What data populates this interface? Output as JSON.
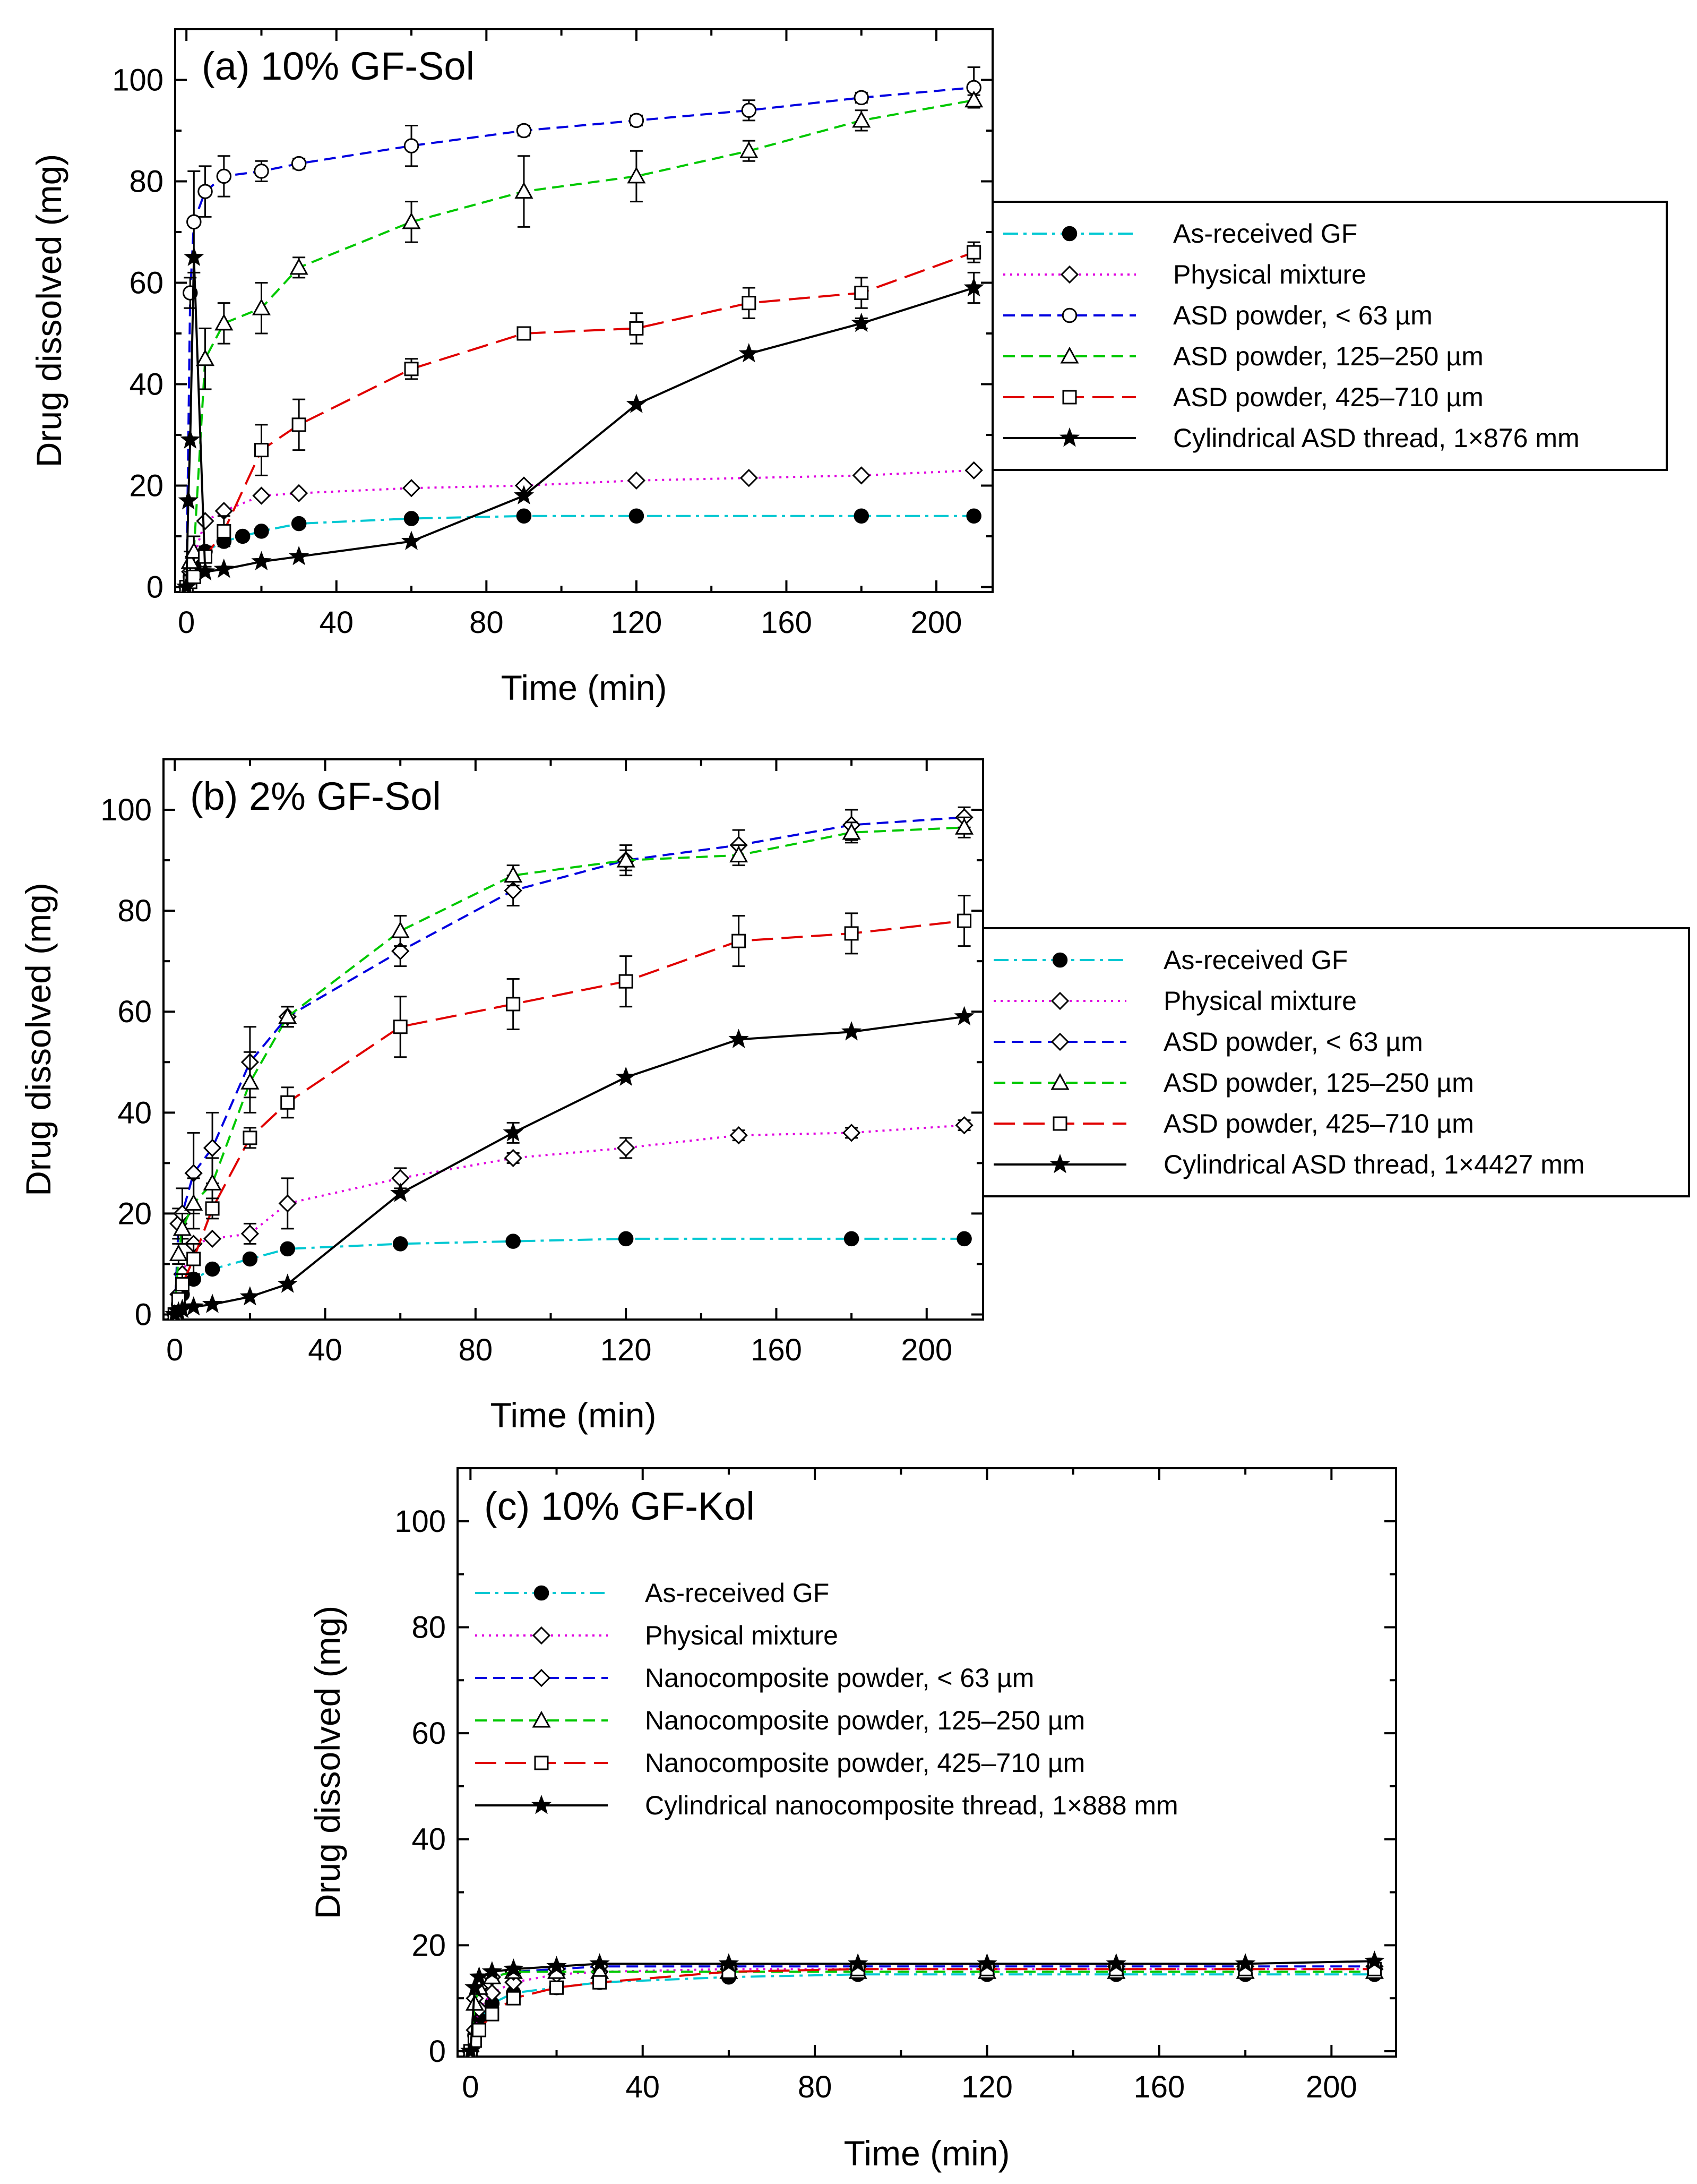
{
  "chart_data": [
    {
      "type": "line",
      "title": "(a) 10% GF-Sol",
      "xlabel": "Time (min)",
      "ylabel": "Drug dissolved (mg)",
      "xlim": [
        -3,
        215
      ],
      "ylim": [
        -1,
        110
      ],
      "xticks": [
        "0",
        "40",
        "80",
        "120",
        "160",
        "200"
      ],
      "yticks": [
        "0",
        "20",
        "40",
        "60",
        "80",
        "100"
      ],
      "legend_position": "right, outside",
      "series": [
        {
          "name": "As-received GF",
          "color": "#00c8d2",
          "dash": "dashdot",
          "marker": "filled-circle",
          "x": [
            0,
            1,
            2,
            5,
            10,
            15,
            20,
            30,
            60,
            90,
            120,
            180,
            210
          ],
          "y": [
            0,
            2,
            4,
            7,
            9,
            10,
            11,
            12.5,
            13.5,
            14,
            14,
            14,
            14
          ]
        },
        {
          "name": "Physical mixture",
          "color": "#e000e0",
          "dash": "dotted",
          "marker": "diamond",
          "x": [
            0,
            1,
            2,
            5,
            10,
            20,
            30,
            60,
            90,
            120,
            150,
            180,
            210
          ],
          "y": [
            0,
            3,
            6,
            13,
            15,
            18,
            18.5,
            19.5,
            20,
            21,
            21.5,
            22,
            23
          ]
        },
        {
          "name": "ASD powder, < 63 µm",
          "color": "#0000e0",
          "dash": "dashed",
          "marker": "circle",
          "x": [
            0,
            1,
            2,
            5,
            10,
            20,
            30,
            60,
            90,
            120,
            150,
            180,
            210
          ],
          "y": [
            0,
            58,
            72,
            78,
            81,
            82,
            83.5,
            87,
            90,
            92,
            94,
            96.5,
            98.5
          ],
          "err": [
            0,
            3,
            10,
            5,
            4,
            2,
            1,
            4,
            1,
            1,
            2,
            1,
            4
          ]
        },
        {
          "name": "ASD powder, 125–250 µm",
          "color": "#00c800",
          "dash": "dashed",
          "marker": "triangle",
          "x": [
            0,
            1,
            2,
            5,
            10,
            20,
            30,
            60,
            90,
            120,
            150,
            180,
            210
          ],
          "y": [
            0,
            5,
            7,
            45,
            52,
            55,
            63,
            72,
            78,
            81,
            86,
            92,
            96
          ],
          "err": [
            0,
            2,
            3,
            6,
            4,
            5,
            2,
            4,
            7,
            5,
            2,
            2,
            1
          ]
        },
        {
          "name": "ASD powder, 425–710 µm",
          "color": "#e00000",
          "dash": "longdash",
          "marker": "square",
          "x": [
            0,
            1,
            2,
            5,
            10,
            20,
            30,
            60,
            90,
            120,
            150,
            180,
            210
          ],
          "y": [
            0,
            1,
            2,
            6,
            11,
            27,
            32,
            43,
            50,
            51,
            56,
            58,
            66
          ],
          "err": [
            0,
            1,
            1,
            2,
            3,
            5,
            5,
            2,
            1,
            3,
            3,
            3,
            2
          ]
        },
        {
          "name": "Cylindrical ASD thread, 1×876 mm",
          "color": "#000000",
          "dash": "solid",
          "marker": "star",
          "x": [
            0,
            0.5,
            1,
            2,
            5,
            10,
            20,
            30,
            60,
            90,
            120,
            150,
            180,
            210
          ],
          "y": [
            0,
            17,
            29,
            65,
            3,
            3.5,
            5,
            6,
            9,
            18,
            36,
            46,
            52,
            59
          ],
          "err": [
            0,
            0,
            0,
            0,
            0,
            0,
            0,
            0,
            0,
            0,
            0,
            0,
            1,
            3
          ]
        }
      ]
    },
    {
      "type": "line",
      "title": "(b) 2% GF-Sol",
      "xlabel": "Time (min)",
      "ylabel": "Drug dissolved (mg)",
      "xlim": [
        -3,
        215
      ],
      "ylim": [
        -1,
        110
      ],
      "xticks": [
        "0",
        "40",
        "80",
        "120",
        "160",
        "200"
      ],
      "yticks": [
        "0",
        "20",
        "40",
        "60",
        "80",
        "100"
      ],
      "legend_position": "right, outside",
      "series": [
        {
          "name": "As-received GF",
          "color": "#00c8d2",
          "dash": "dashdot",
          "marker": "filled-circle",
          "x": [
            0,
            1,
            2,
            5,
            10,
            20,
            30,
            60,
            90,
            120,
            180,
            210
          ],
          "y": [
            0,
            2,
            4,
            7,
            9,
            11,
            13,
            14,
            14.5,
            15,
            15,
            15
          ]
        },
        {
          "name": "Physical mixture",
          "color": "#e000e0",
          "dash": "dotted",
          "marker": "diamond",
          "x": [
            0,
            1,
            2,
            5,
            10,
            20,
            30,
            60,
            90,
            120,
            150,
            180,
            210
          ],
          "y": [
            0,
            4,
            8,
            14,
            15,
            16,
            22,
            27,
            31,
            33,
            35.5,
            36,
            37.5
          ],
          "err": [
            0,
            0,
            0,
            0,
            0,
            2,
            5,
            2,
            1,
            2,
            1,
            1,
            1
          ]
        },
        {
          "name": "ASD powder, < 63 µm",
          "color": "#0000e0",
          "dash": "dashed",
          "marker": "diamond",
          "x": [
            0,
            1,
            2,
            5,
            10,
            20,
            30,
            60,
            90,
            120,
            150,
            180,
            210
          ],
          "y": [
            0,
            18,
            20,
            28,
            33,
            50,
            59,
            72,
            84,
            90,
            93,
            97,
            98.5
          ],
          "err": [
            0,
            3,
            5,
            8,
            7,
            7,
            2,
            3,
            3,
            3,
            3,
            3,
            2
          ]
        },
        {
          "name": "ASD powder, 125–250 µm",
          "color": "#00c800",
          "dash": "dashed",
          "marker": "triangle",
          "x": [
            0,
            1,
            2,
            5,
            10,
            20,
            30,
            60,
            90,
            120,
            150,
            180,
            210
          ],
          "y": [
            0,
            12,
            17,
            22,
            26,
            46,
            59,
            76,
            87,
            90,
            91,
            95.5,
            96.5
          ],
          "err": [
            0,
            2,
            3,
            5,
            5,
            6,
            2,
            3,
            2,
            2,
            2,
            2,
            2
          ]
        },
        {
          "name": "ASD powder, 425–710 µm",
          "color": "#e00000",
          "dash": "longdash",
          "marker": "square",
          "x": [
            0,
            1,
            2,
            5,
            10,
            20,
            30,
            60,
            90,
            120,
            150,
            180,
            210
          ],
          "y": [
            0,
            3,
            6,
            11,
            21,
            35,
            42,
            57,
            61.5,
            66,
            74,
            75.5,
            78
          ],
          "err": [
            0,
            1,
            2,
            3,
            2,
            2,
            3,
            6,
            5,
            5,
            5,
            4,
            5
          ]
        },
        {
          "name": "Cylindrical ASD thread, 1×4427 mm",
          "color": "#000000",
          "dash": "solid",
          "marker": "star",
          "x": [
            0,
            1,
            2,
            5,
            10,
            20,
            30,
            60,
            90,
            120,
            150,
            180,
            210
          ],
          "y": [
            0,
            0.5,
            1,
            1.5,
            2,
            3.5,
            6,
            24,
            36,
            47,
            54.5,
            56,
            59
          ],
          "err": [
            0,
            0,
            0,
            0,
            0,
            0,
            0,
            0,
            2,
            0,
            0,
            0,
            0
          ]
        }
      ]
    },
    {
      "type": "line",
      "title": "(c) 10% GF-Kol",
      "xlabel": "Time (min)",
      "ylabel": "Drug dissolved (mg)",
      "xlim": [
        -3,
        215
      ],
      "ylim": [
        -1,
        110
      ],
      "xticks": [
        "0",
        "40",
        "80",
        "120",
        "160",
        "200"
      ],
      "yticks": [
        "0",
        "20",
        "40",
        "60",
        "80",
        "100"
      ],
      "legend_position": "upper-left, inside",
      "series": [
        {
          "name": "As-received GF",
          "color": "#00c8d2",
          "dash": "dashdot",
          "marker": "filled-circle",
          "x": [
            0,
            1,
            2,
            5,
            10,
            20,
            30,
            60,
            90,
            120,
            150,
            180,
            210
          ],
          "y": [
            0,
            3,
            6,
            9,
            11,
            12,
            13,
            14,
            14.5,
            14.5,
            14.5,
            14.5,
            14.5
          ]
        },
        {
          "name": "Physical mixture",
          "color": "#e000e0",
          "dash": "dotted",
          "marker": "diamond",
          "x": [
            0,
            1,
            2,
            5,
            10,
            20,
            30,
            60,
            90,
            120,
            150,
            180,
            210
          ],
          "y": [
            0,
            4,
            8,
            11,
            13,
            14.5,
            15,
            15.5,
            15.5,
            15.5,
            15.5,
            15.5,
            15.5
          ]
        },
        {
          "name": "Nanocomposite powder, < 63 µm",
          "color": "#0000e0",
          "dash": "dashed",
          "marker": "diamond",
          "x": [
            0,
            1,
            2,
            5,
            10,
            20,
            30,
            60,
            90,
            120,
            150,
            180,
            210
          ],
          "y": [
            0,
            10,
            12,
            14,
            15,
            15.5,
            16,
            16,
            16,
            16,
            16,
            16,
            16
          ]
        },
        {
          "name": "Nanocomposite powder, 125–250 µm",
          "color": "#00c800",
          "dash": "dashed",
          "marker": "triangle",
          "x": [
            0,
            1,
            2,
            5,
            10,
            20,
            30,
            60,
            90,
            120,
            150,
            180,
            210
          ],
          "y": [
            0,
            9,
            12,
            14,
            15,
            15,
            15,
            15,
            15,
            15,
            15,
            15,
            15
          ]
        },
        {
          "name": "Nanocomposite powder, 425–710 µm",
          "color": "#e00000",
          "dash": "longdash",
          "marker": "square",
          "x": [
            0,
            1,
            2,
            5,
            10,
            20,
            30,
            60,
            90,
            120,
            150,
            180,
            210
          ],
          "y": [
            0,
            2,
            4,
            7,
            10,
            12,
            13,
            15,
            15.5,
            15.5,
            15.5,
            15.5,
            15.5
          ]
        },
        {
          "name": "Cylindrical nanocomposite thread, 1×888 mm",
          "color": "#000000",
          "dash": "solid",
          "marker": "star",
          "x": [
            0,
            1,
            2,
            5,
            10,
            20,
            30,
            60,
            90,
            120,
            150,
            180,
            210
          ],
          "y": [
            0,
            12,
            14,
            15,
            15.5,
            16,
            16.5,
            16.5,
            16.5,
            16.5,
            16.5,
            16.5,
            17
          ]
        }
      ]
    }
  ]
}
